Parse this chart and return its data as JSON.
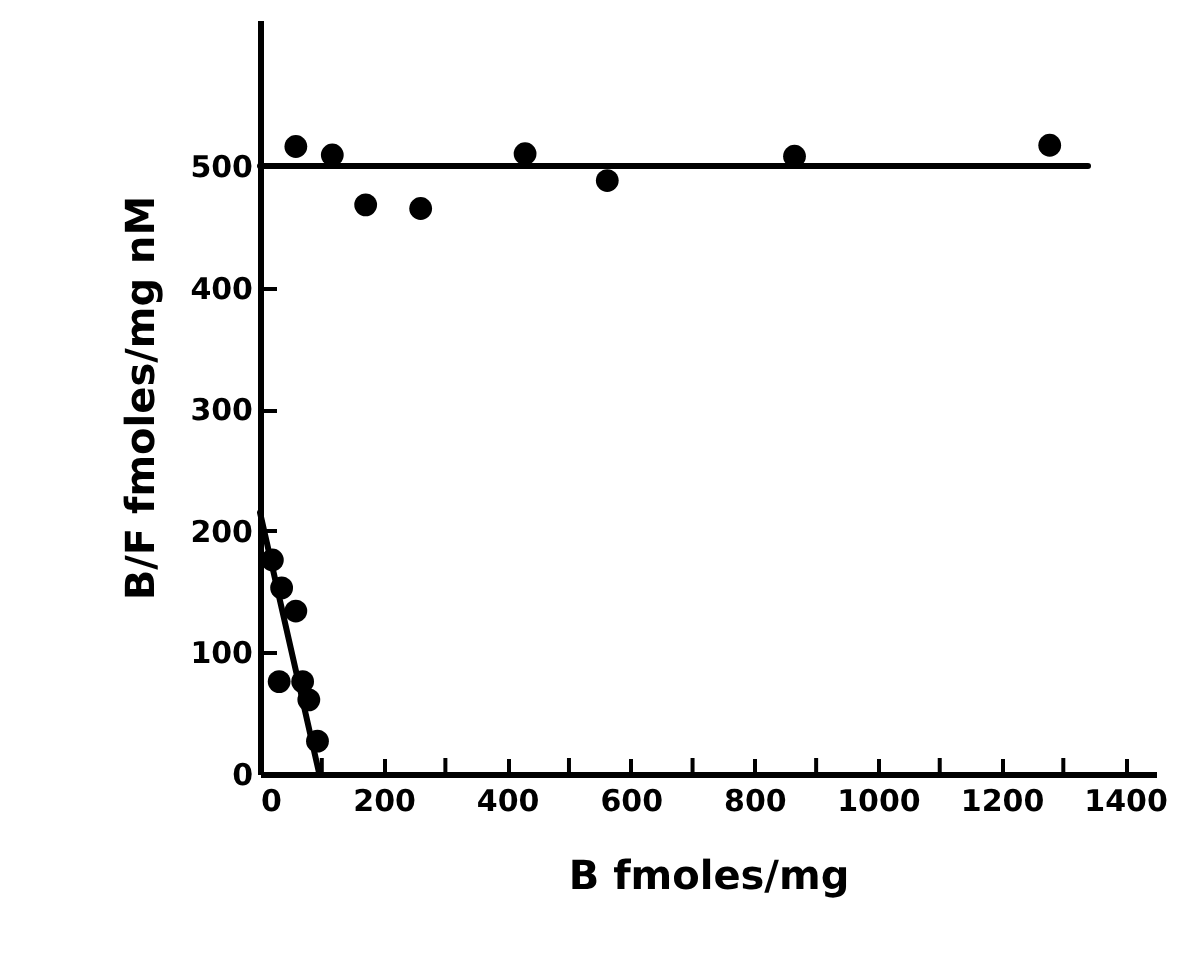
{
  "chart_data": {
    "type": "scatter",
    "xlabel": "B fmoles/mg",
    "ylabel": "B/F fmoles/mg nM",
    "xlim": [
      0,
      1450
    ],
    "ylim": [
      0,
      620
    ],
    "xticks": [
      0,
      {
        "value": 100,
        "label": null
      },
      200,
      {
        "value": 300,
        "label": null
      },
      400,
      {
        "value": 500,
        "label": null
      },
      600,
      {
        "value": 700,
        "label": null
      },
      800,
      {
        "value": 900,
        "label": null
      },
      1000,
      {
        "value": 1100,
        "label": null
      },
      1200,
      {
        "value": 1300,
        "label": null
      },
      1400
    ],
    "yticks": [
      0,
      100,
      200,
      300,
      400,
      500
    ],
    "grid": false,
    "marker": "circle",
    "series": [
      {
        "color": "#000000",
        "x": [
          58,
          117,
          171,
          260,
          429,
          562,
          865,
          1278
        ],
        "values": [
          516,
          509,
          468,
          465,
          510,
          488,
          508,
          517
        ]
      },
      {
        "color": "#000000",
        "x": [
          20,
          35,
          58,
          31,
          69,
          79,
          93
        ],
        "values": [
          176,
          153,
          134,
          76,
          76,
          61,
          27
        ]
      },
      {
        "type": "line",
        "color": "#000000",
        "marker": "none",
        "line_style": "solid",
        "x": [
          0,
          1340
        ],
        "values": [
          500,
          500
        ]
      },
      {
        "type": "line",
        "color": "#000000",
        "marker": "none",
        "line_style": "solid",
        "x": [
          0,
          96
        ],
        "values": [
          215,
          0
        ]
      }
    ]
  }
}
